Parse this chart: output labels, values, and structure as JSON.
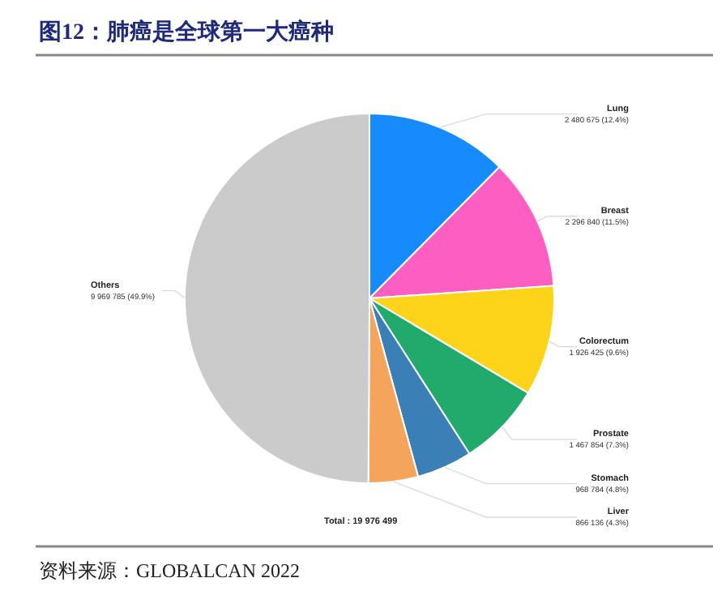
{
  "chart_data": {
    "type": "pie",
    "title": "图12：肺癌是全球第一大癌种",
    "categories": [
      "Lung",
      "Breast",
      "Colorectum",
      "Prostate",
      "Stomach",
      "Liver",
      "Others"
    ],
    "values": [
      2480675,
      2296840,
      1926425,
      1467854,
      968784,
      866136,
      9969785
    ],
    "colors": [
      "#168bfb",
      "#fd5ec1",
      "#fed41b",
      "#22a96c",
      "#3a80b6",
      "#f5a45c",
      "#cbcbcb"
    ],
    "value_labels": [
      "2 480 675 (12.4%)",
      "2 296 840 (11.5%)",
      "1 926 425 (9.6%)",
      "1 467 854 (7.3%)",
      "968 784 (4.8%)",
      "866 136 (4.3%)",
      "9 969 785 (49.9%)"
    ],
    "annotations": [
      "Total : 19 976 499",
      "资料来源：GLOBALCAN 2022"
    ]
  }
}
